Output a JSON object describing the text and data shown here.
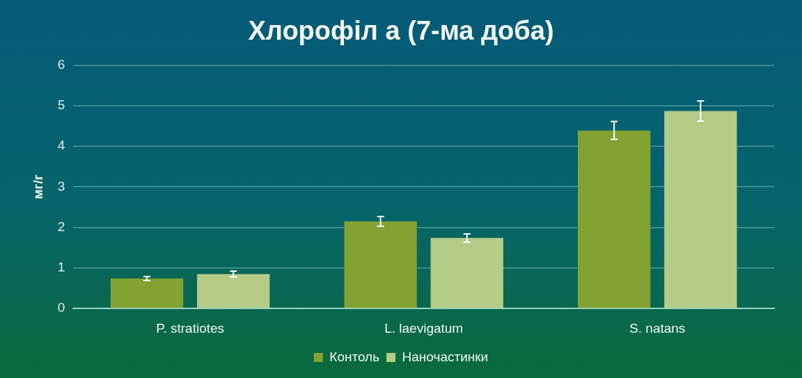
{
  "chart_data": {
    "type": "bar",
    "title": "Хлорофіл а (7-ма доба)",
    "ylabel": "мг/г",
    "categories": [
      "P. stratiotes",
      "L. laevigatum",
      "S. natans"
    ],
    "series": [
      {
        "name": "Контоль",
        "color": "#83a232",
        "values": [
          0.74,
          2.15,
          4.39
        ],
        "errors": [
          0.05,
          0.12,
          0.22
        ]
      },
      {
        "name": "Наночастинки",
        "color": "#b5cc87",
        "values": [
          0.85,
          1.74,
          4.87
        ],
        "errors": [
          0.07,
          0.1,
          0.25
        ]
      }
    ],
    "ylim": [
      0,
      6
    ],
    "yticks": [
      0,
      1,
      2,
      3,
      4,
      5,
      6
    ],
    "grid": "y",
    "legend": "bottom"
  }
}
